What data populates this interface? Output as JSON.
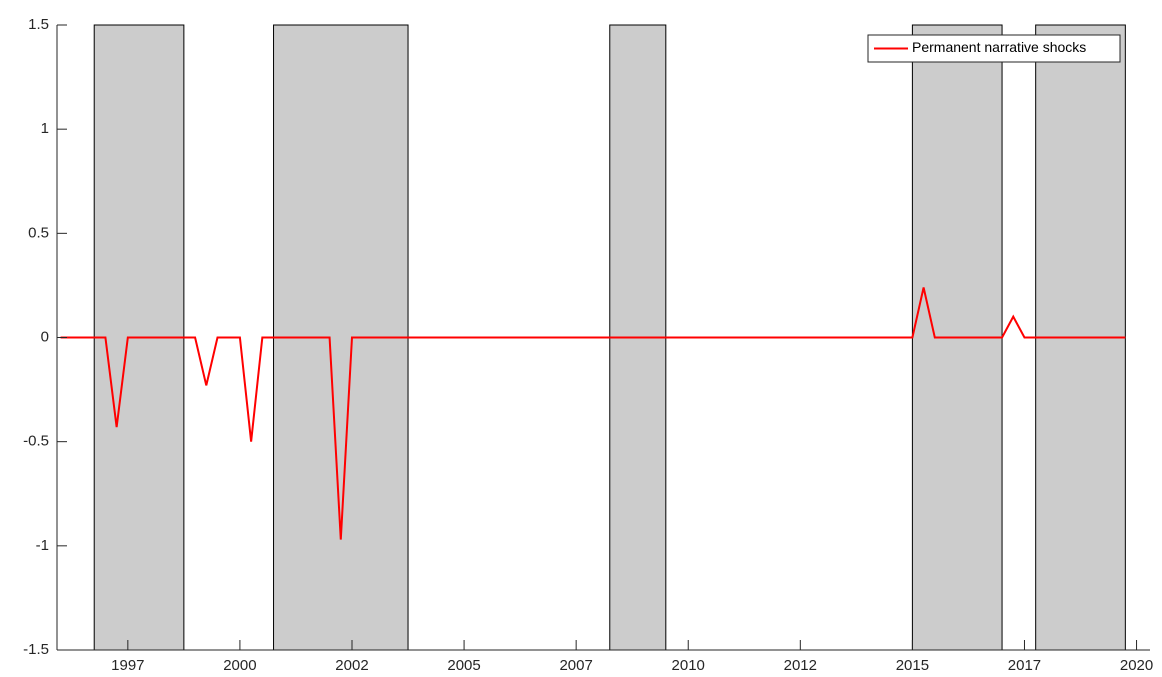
{
  "chart_data": {
    "type": "line",
    "x": [
      1996,
      1996.25,
      1996.5,
      1996.75,
      1997,
      1997.25,
      1997.5,
      1997.75,
      1998,
      1998.25,
      1998.5,
      1998.75,
      1999,
      1999.25,
      1999.5,
      1999.75,
      2000,
      2000.25,
      2000.5,
      2000.75,
      2001,
      2001.25,
      2001.5,
      2001.75,
      2002,
      2002.25,
      2002.5,
      2002.75,
      2003,
      2003.25,
      2003.5,
      2003.75,
      2004,
      2004.25,
      2004.5,
      2004.75,
      2005,
      2005.25,
      2005.5,
      2005.75,
      2006,
      2006.25,
      2006.5,
      2006.75,
      2007,
      2007.25,
      2007.5,
      2007.75,
      2008,
      2008.25,
      2008.5,
      2008.75,
      2009,
      2009.25,
      2009.5,
      2009.75,
      2010,
      2010.25,
      2010.5,
      2010.75,
      2011,
      2011.25,
      2011.5,
      2011.75,
      2012,
      2012.25,
      2012.5,
      2012.75,
      2013,
      2013.25,
      2013.5,
      2013.75,
      2014,
      2014.25,
      2014.5,
      2014.75,
      2015,
      2015.25,
      2015.5,
      2015.75,
      2016,
      2016.25,
      2016.5,
      2016.75,
      2017,
      2017.25,
      2017.5,
      2017.75,
      2018,
      2018.25,
      2018.5,
      2018.75,
      2019,
      2019.25,
      2019.5,
      2019.75
    ],
    "series": [
      {
        "name": "Permanent narrative shocks",
        "color": "#ff0000",
        "values": [
          0,
          0,
          0,
          0,
          0,
          -0.43,
          0,
          0,
          0,
          0,
          0,
          0,
          0,
          -0.23,
          0,
          0,
          0,
          -0.5,
          0,
          0,
          0,
          0,
          0,
          0,
          0,
          -0.97,
          0,
          0,
          0,
          0,
          0,
          0,
          0,
          0,
          0,
          0,
          0,
          0,
          0,
          0,
          0,
          0,
          0,
          0,
          0,
          0,
          0,
          0,
          0,
          0,
          0,
          0,
          0,
          0,
          0,
          0,
          0,
          0,
          0,
          0,
          0,
          0,
          0,
          0,
          0,
          0,
          0,
          0,
          0,
          0,
          0,
          0,
          0,
          0,
          0,
          0,
          0,
          0.24,
          0,
          0,
          0,
          0,
          0,
          0,
          0,
          0.1,
          0,
          0,
          0,
          0,
          0,
          0,
          0,
          0,
          0,
          0
        ]
      }
    ],
    "shaded_regions": [
      [
        1996.75,
        1998.75
      ],
      [
        2000.75,
        2003.75
      ],
      [
        2008.25,
        2009.5
      ],
      [
        2015.0,
        2017.0
      ],
      [
        2017.75,
        2019.75
      ]
    ],
    "shade_color": "#cccccc",
    "xlim": [
      1995.92,
      2020.3
    ],
    "xticks": [
      {
        "value": 1997.5,
        "label": "1997"
      },
      2000,
      {
        "value": 2002.5,
        "label": "2002"
      },
      2005,
      {
        "value": 2007.5,
        "label": "2007"
      },
      2010,
      {
        "value": 2012.5,
        "label": "2012"
      },
      2015,
      {
        "value": 2017.5,
        "label": "2017"
      },
      2020
    ],
    "ylim": [
      -1.5,
      1.5
    ],
    "yticks": [
      -1.5,
      -1,
      -0.5,
      0,
      0.5,
      1,
      1.5
    ],
    "grid": false,
    "legend": "northeast"
  }
}
